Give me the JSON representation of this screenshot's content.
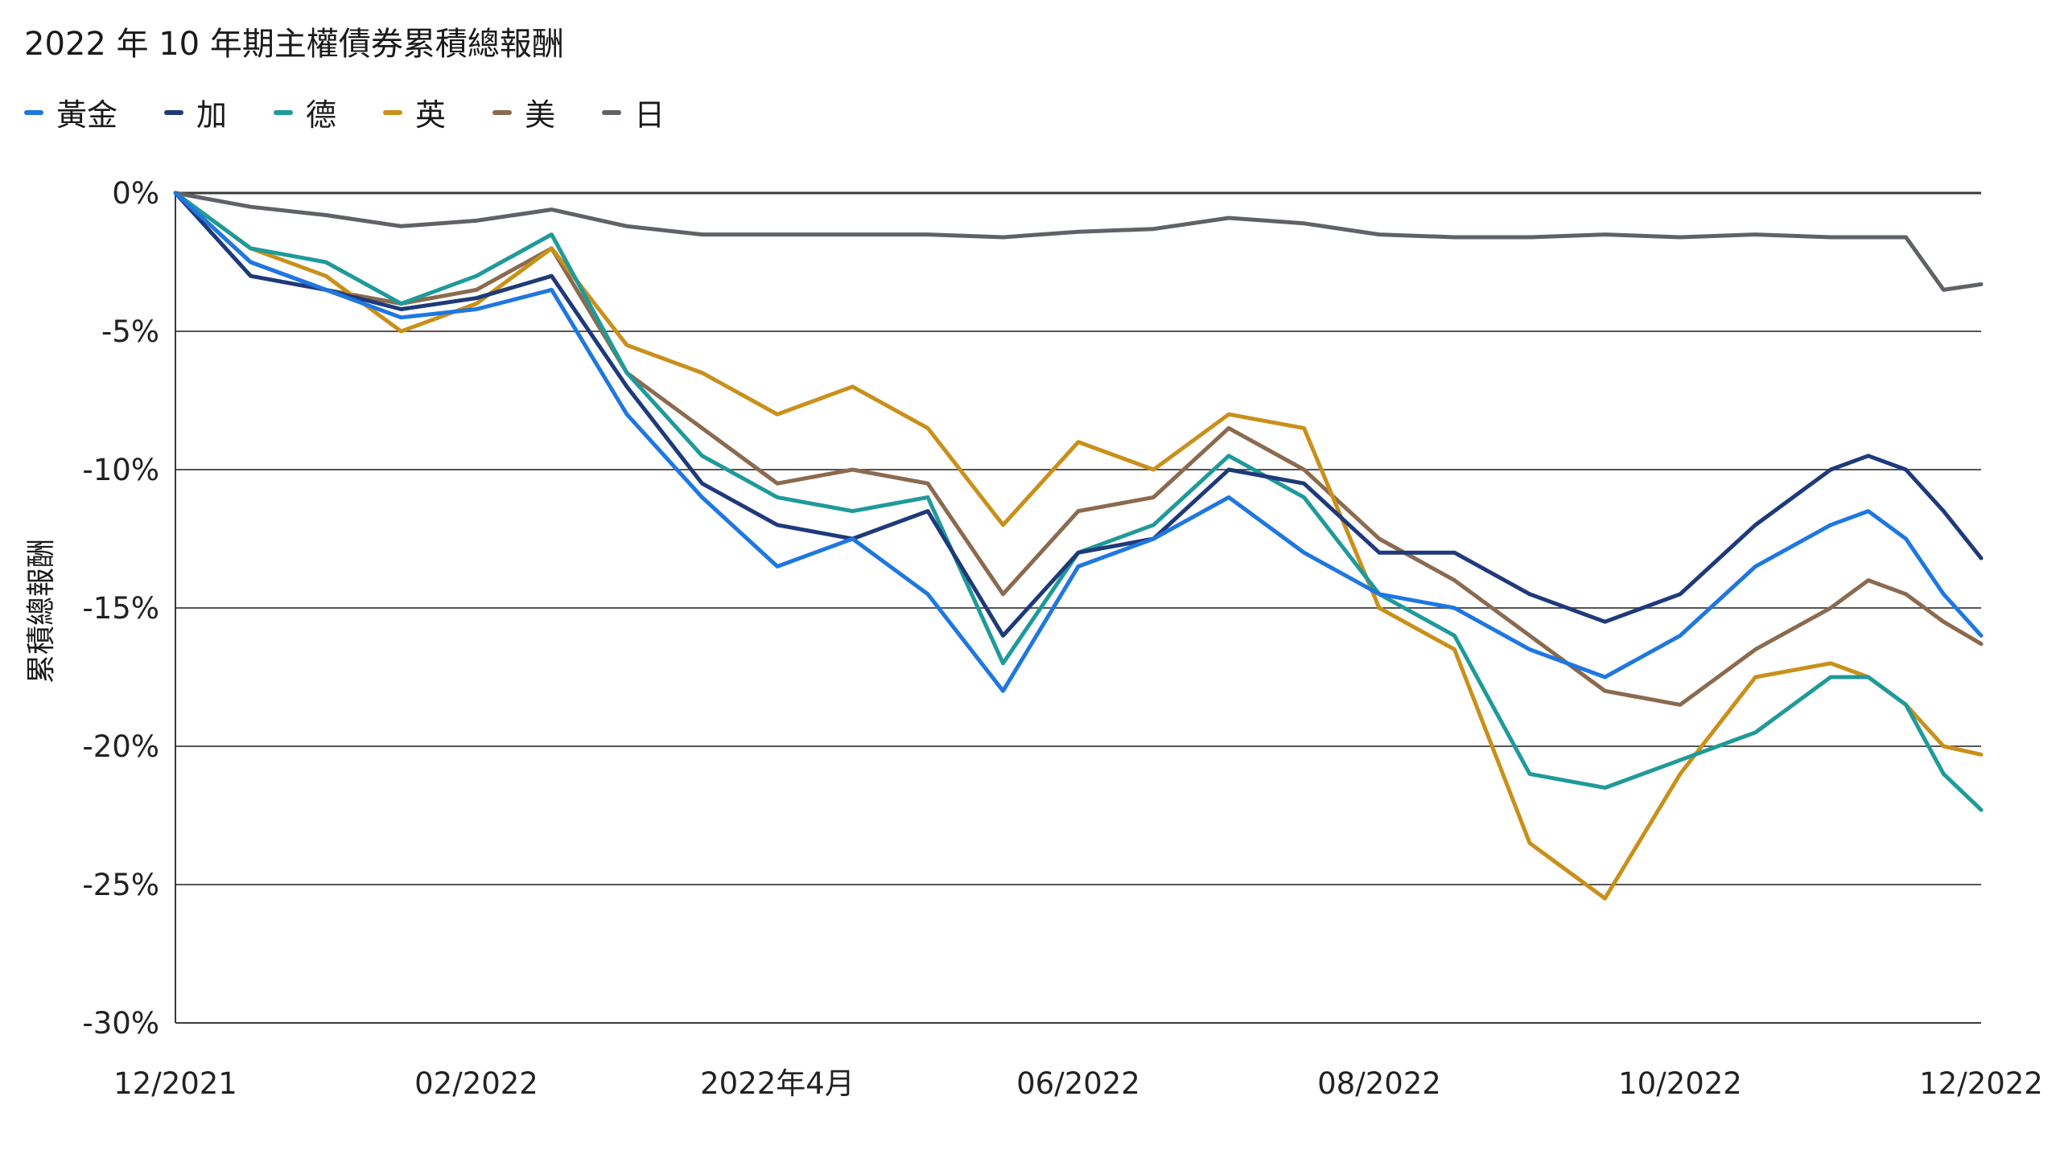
{
  "title": "2022 年 10 年期主權債券累積總報酬",
  "chart_data": {
    "type": "line",
    "title": "2022 年 10 年期主權債券累積總報酬",
    "ylabel": "累積總報酬",
    "xlabel": "",
    "ylim": [
      -30,
      0
    ],
    "y_ticks": [
      0,
      -5,
      -10,
      -15,
      -20,
      -25,
      -30
    ],
    "y_tick_labels": [
      "0%",
      "-5%",
      "-10%",
      "-15%",
      "-20%",
      "-25%",
      "-30%"
    ],
    "x_tick_labels": [
      "12/2021",
      "02/2022",
      "2022年4月",
      "06/2022",
      "08/2022",
      "10/2022",
      "12/2022"
    ],
    "x_ticks_month": [
      0,
      2,
      4,
      6,
      8,
      10,
      12
    ],
    "x_range_month": [
      0,
      12
    ],
    "grid": "horizontal",
    "legend_position": "top-left",
    "series": [
      {
        "name": "黃金",
        "color": "#1f77e0",
        "x": [
          0,
          0.5,
          1,
          1.5,
          2,
          2.5,
          3,
          3.5,
          4,
          4.5,
          5,
          5.5,
          6,
          6.5,
          7,
          7.5,
          8,
          8.5,
          9,
          9.5,
          10,
          10.5,
          11,
          11.25,
          11.5,
          11.75,
          12
        ],
        "values": [
          0,
          -2.5,
          -3.5,
          -4.5,
          -4.2,
          -3.5,
          -8.0,
          -11.0,
          -13.5,
          -12.5,
          -14.5,
          -18.0,
          -13.5,
          -12.5,
          -11.0,
          -13.0,
          -14.5,
          -15.0,
          -16.5,
          -17.5,
          -16.0,
          -13.5,
          -12.0,
          -11.5,
          -12.5,
          -14.5,
          -16.0
        ]
      },
      {
        "name": "加",
        "color": "#1f3a7a",
        "x": [
          0,
          0.5,
          1,
          1.5,
          2,
          2.5,
          3,
          3.5,
          4,
          4.5,
          5,
          5.5,
          6,
          6.5,
          7,
          7.5,
          8,
          8.5,
          9,
          9.5,
          10,
          10.5,
          11,
          11.25,
          11.5,
          11.75,
          12
        ],
        "values": [
          0,
          -3.0,
          -3.5,
          -4.2,
          -3.8,
          -3.0,
          -7.0,
          -10.5,
          -12.0,
          -12.5,
          -11.5,
          -16.0,
          -13.0,
          -12.5,
          -10.0,
          -10.5,
          -13.0,
          -13.0,
          -14.5,
          -15.5,
          -14.5,
          -12.0,
          -10.0,
          -9.5,
          -10.0,
          -11.5,
          -13.2
        ]
      },
      {
        "name": "德",
        "color": "#1f9a9a",
        "x": [
          0,
          0.5,
          1,
          1.5,
          2,
          2.5,
          3,
          3.5,
          4,
          4.5,
          5,
          5.5,
          6,
          6.5,
          7,
          7.5,
          8,
          8.5,
          9,
          9.5,
          10,
          10.5,
          11,
          11.25,
          11.5,
          11.75,
          12
        ],
        "values": [
          0,
          -2.0,
          -2.5,
          -4.0,
          -3.0,
          -1.5,
          -6.5,
          -9.5,
          -11.0,
          -11.5,
          -11.0,
          -17.0,
          -13.0,
          -12.0,
          -9.5,
          -11.0,
          -14.5,
          -16.0,
          -21.0,
          -21.5,
          -20.5,
          -19.5,
          -17.5,
          -17.5,
          -18.5,
          -21.0,
          -22.3
        ]
      },
      {
        "name": "英",
        "color": "#c9901a",
        "x": [
          0,
          0.5,
          1,
          1.5,
          2,
          2.5,
          3,
          3.5,
          4,
          4.5,
          5,
          5.5,
          6,
          6.5,
          7,
          7.5,
          8,
          8.5,
          9,
          9.5,
          10,
          10.5,
          11,
          11.25,
          11.5,
          11.75,
          12
        ],
        "values": [
          0,
          -2.0,
          -3.0,
          -5.0,
          -4.0,
          -2.0,
          -5.5,
          -6.5,
          -8.0,
          -7.0,
          -8.5,
          -12.0,
          -9.0,
          -10.0,
          -8.0,
          -8.5,
          -15.0,
          -16.5,
          -23.5,
          -25.5,
          -21.0,
          -17.5,
          -17.0,
          -17.5,
          -18.5,
          -20.0,
          -20.3
        ]
      },
      {
        "name": "美",
        "color": "#8b6a4f",
        "x": [
          0,
          0.5,
          1,
          1.5,
          2,
          2.5,
          3,
          3.5,
          4,
          4.5,
          5,
          5.5,
          6,
          6.5,
          7,
          7.5,
          8,
          8.5,
          9,
          9.5,
          10,
          10.5,
          11,
          11.25,
          11.5,
          11.75,
          12
        ],
        "values": [
          0,
          -2.5,
          -3.5,
          -4.0,
          -3.5,
          -2.0,
          -6.5,
          -8.5,
          -10.5,
          -10.0,
          -10.5,
          -14.5,
          -11.5,
          -11.0,
          -8.5,
          -10.0,
          -12.5,
          -14.0,
          -16.0,
          -18.0,
          -18.5,
          -16.5,
          -15.0,
          -14.0,
          -14.5,
          -15.5,
          -16.3
        ]
      },
      {
        "name": "日",
        "color": "#5f6266",
        "x": [
          0,
          0.5,
          1,
          1.5,
          2,
          2.5,
          3,
          3.5,
          4,
          4.5,
          5,
          5.5,
          6,
          6.5,
          7,
          7.5,
          8,
          8.5,
          9,
          9.5,
          10,
          10.5,
          11,
          11.25,
          11.5,
          11.75,
          12
        ],
        "values": [
          0,
          -0.5,
          -0.8,
          -1.2,
          -1.0,
          -0.6,
          -1.2,
          -1.5,
          -1.5,
          -1.5,
          -1.5,
          -1.6,
          -1.4,
          -1.3,
          -0.9,
          -1.1,
          -1.5,
          -1.6,
          -1.6,
          -1.5,
          -1.6,
          -1.5,
          -1.6,
          -1.6,
          -1.6,
          -3.5,
          -3.3
        ]
      }
    ]
  }
}
